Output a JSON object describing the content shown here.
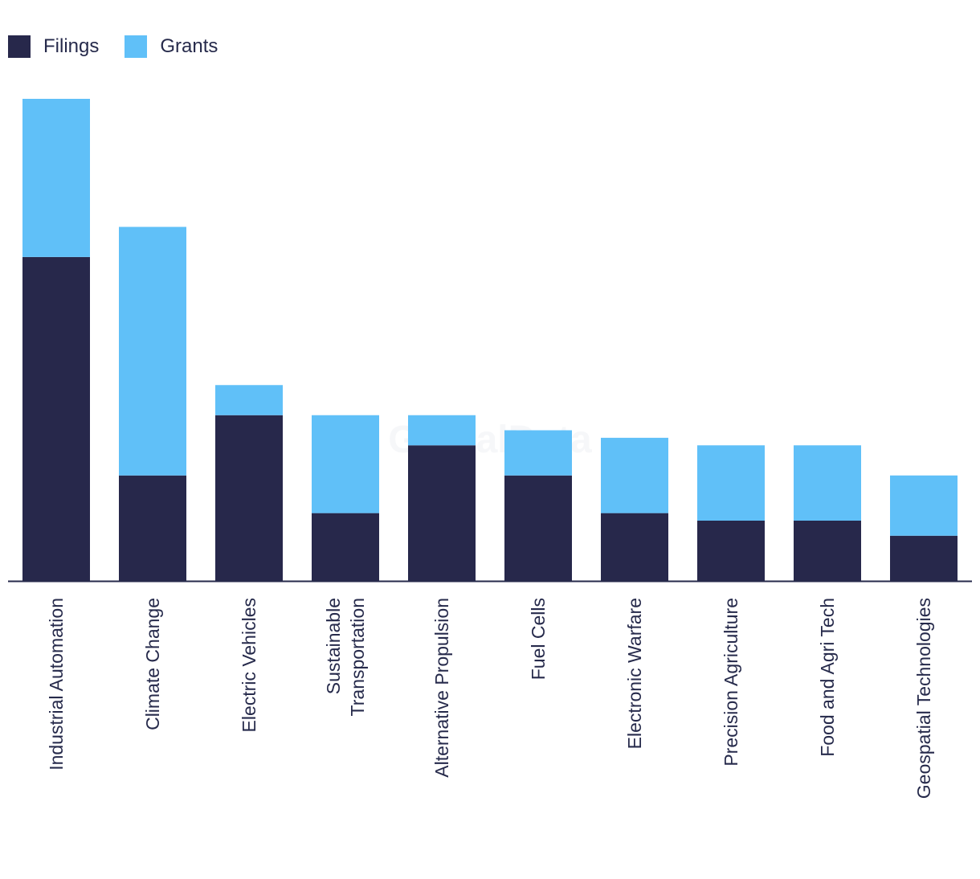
{
  "legend": {
    "filings_label": "Filings",
    "grants_label": "Grants"
  },
  "watermark": "GlobalData",
  "colors": {
    "filings": "#27284b",
    "grants": "#60c0f8",
    "axis": "#262a4b",
    "text": "#262a4b"
  },
  "chart_data": {
    "type": "bar",
    "stacked": true,
    "title": "",
    "xlabel": "",
    "ylabel": "",
    "ylim": [
      0,
      64
    ],
    "grid": false,
    "legend_position": "top-left",
    "categories": [
      [
        "Industrial Automation"
      ],
      [
        "Climate Change"
      ],
      [
        "Electric Vehicles"
      ],
      [
        "Sustainable",
        "Transportation"
      ],
      [
        "Alternative Propulsion"
      ],
      [
        "Fuel Cells"
      ],
      [
        "Electronic Warfare"
      ],
      [
        "Precision Agriculture"
      ],
      [
        "Food and Agri Tech"
      ],
      [
        "Geospatial Technologies"
      ]
    ],
    "series": [
      {
        "name": "Filings",
        "values": [
          43,
          14,
          22,
          9,
          18,
          14,
          9,
          8,
          8,
          6
        ]
      },
      {
        "name": "Grants",
        "values": [
          21,
          33,
          4,
          13,
          4,
          6,
          10,
          10,
          10,
          8
        ]
      }
    ]
  }
}
